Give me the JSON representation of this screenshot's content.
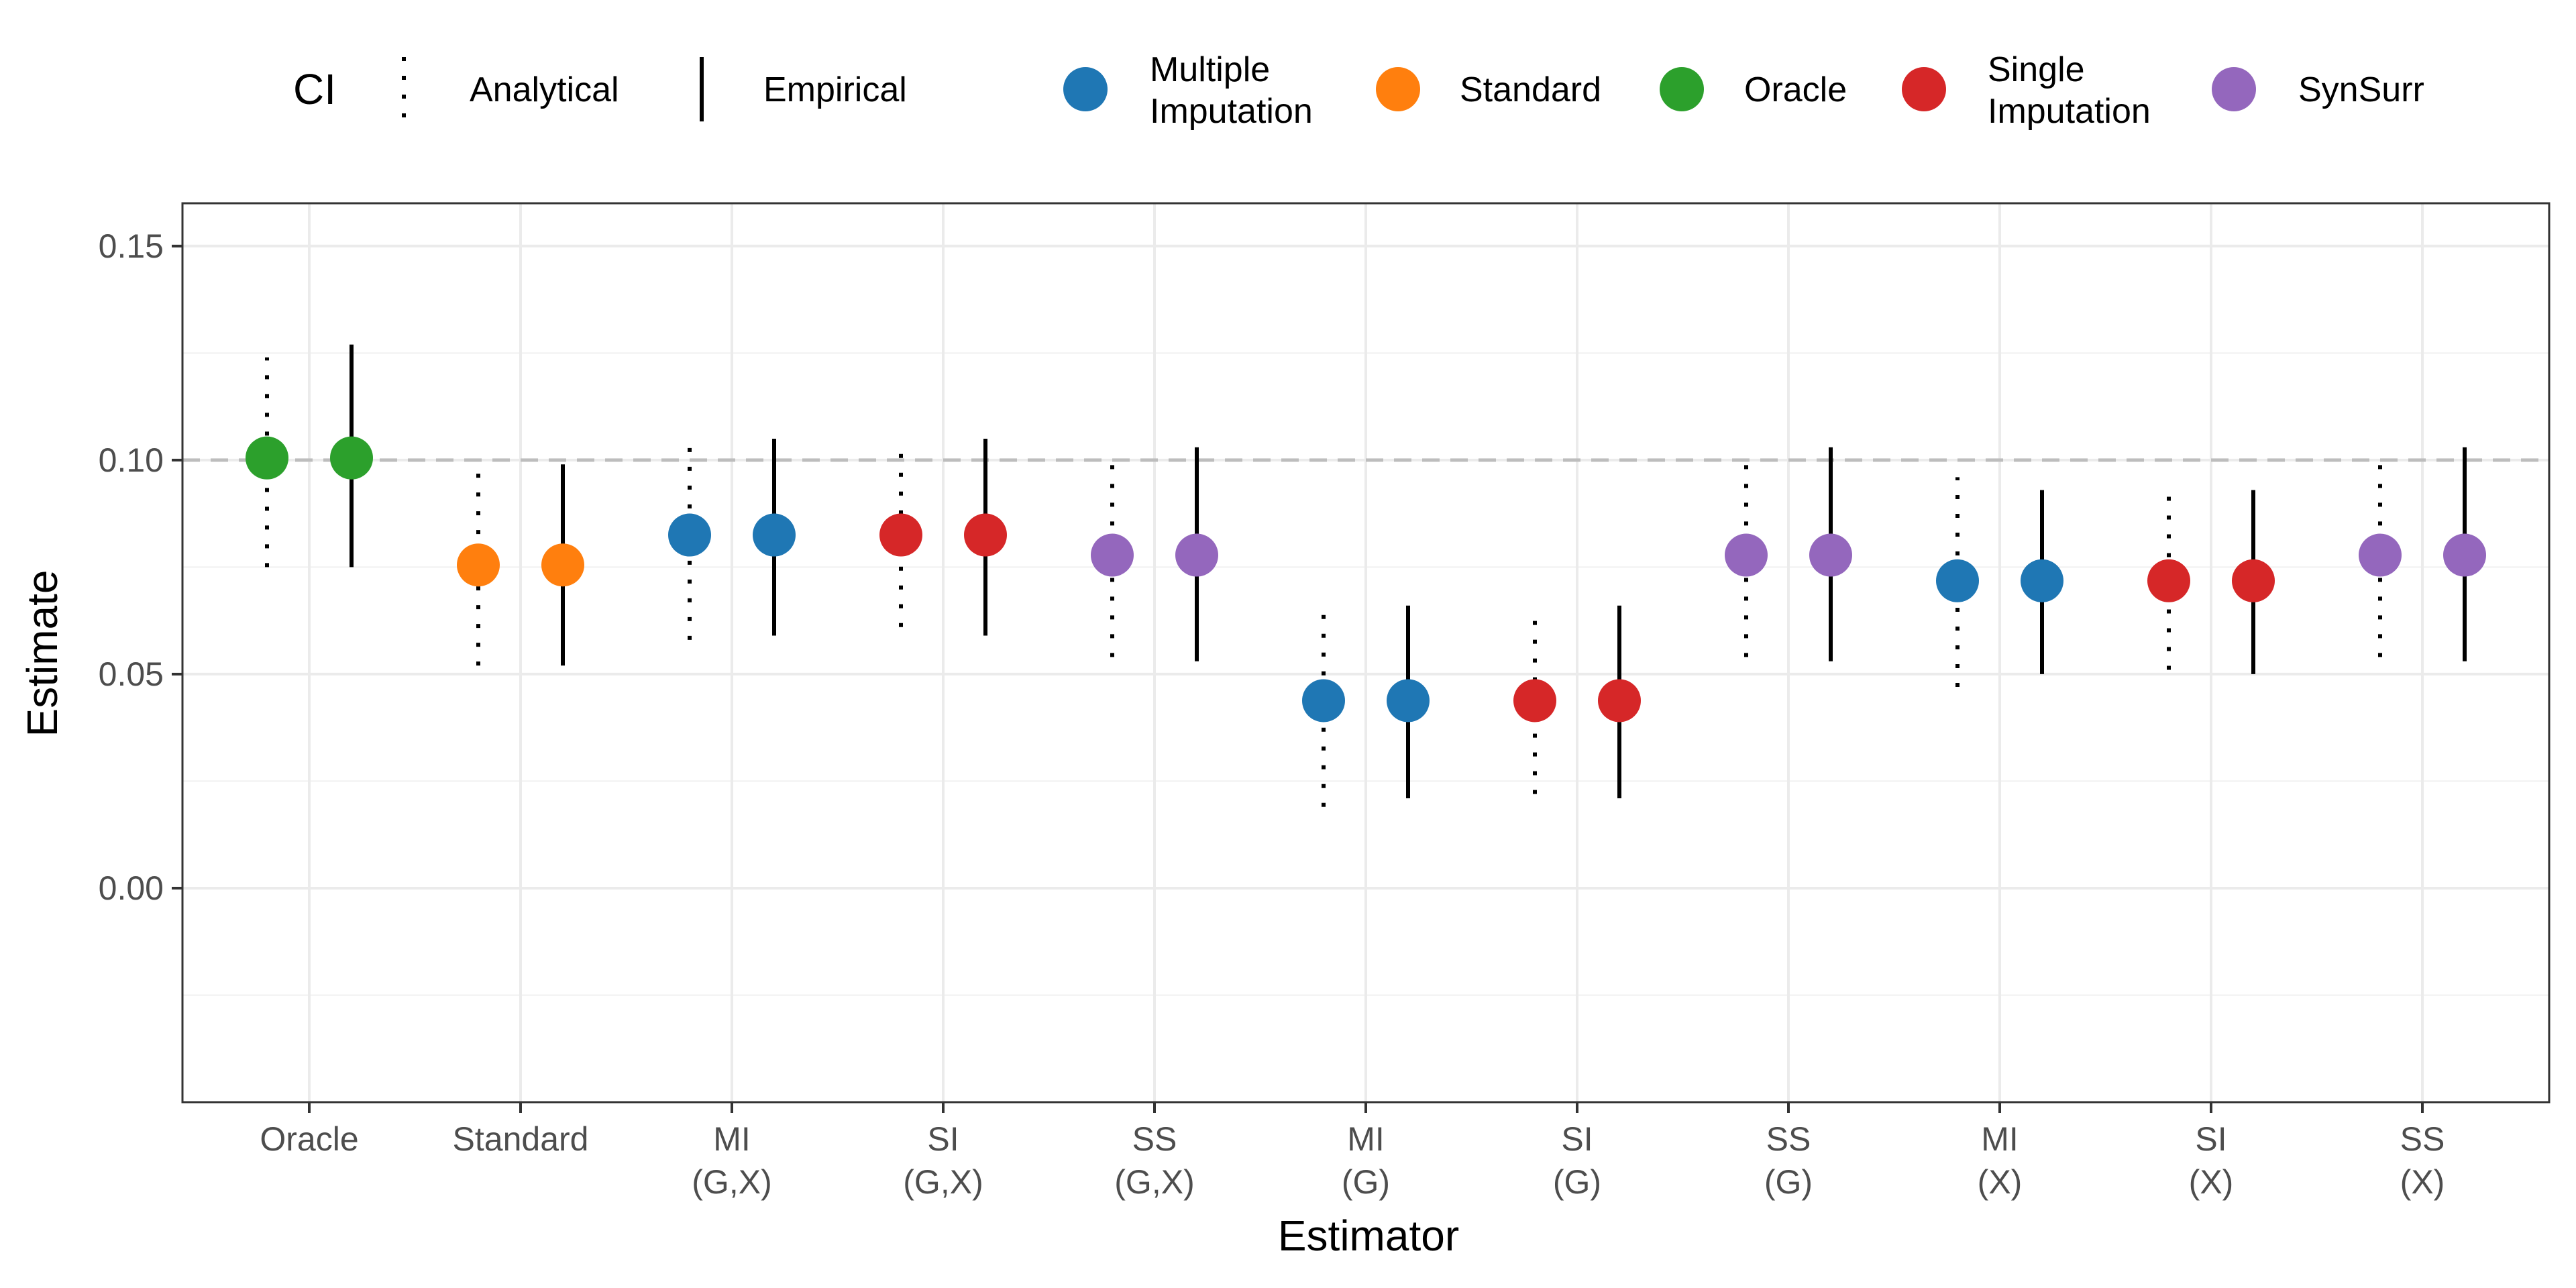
{
  "chart_data": {
    "type": "scatter",
    "xlabel": "Estimator",
    "ylabel": "Estimate",
    "ylim": [
      -0.05,
      0.16
    ],
    "yticks": [
      "0.00",
      "0.05",
      "0.10",
      "0.15"
    ],
    "ytick_values": [
      0.0,
      0.05,
      0.1,
      0.15
    ],
    "reference_line": 0.1,
    "grid": true,
    "legend_position": "top",
    "legend": {
      "ci_title": "CI",
      "ci_items": [
        {
          "label": "Analytical",
          "style": "dotted"
        },
        {
          "label": "Empirical",
          "style": "solid"
        }
      ],
      "method_items": [
        {
          "label": [
            "Multiple",
            "Imputation"
          ],
          "color": "#1f77b4"
        },
        {
          "label": [
            "Standard"
          ],
          "color": "#ff7f0e"
        },
        {
          "label": [
            "Oracle"
          ],
          "color": "#2ca02c"
        },
        {
          "label": [
            "Single",
            "Imputation"
          ],
          "color": "#d62728"
        },
        {
          "label": [
            "SynSurr"
          ],
          "color": "#9467bd"
        }
      ]
    },
    "categories": [
      {
        "label": [
          "Oracle"
        ],
        "method": "Oracle",
        "estimate": 0.1005,
        "analytical": [
          0.075,
          0.124
        ],
        "empirical": [
          0.075,
          0.127
        ]
      },
      {
        "label": [
          "Standard"
        ],
        "method": "Standard",
        "estimate": 0.0755,
        "analytical": [
          0.052,
          0.098
        ],
        "empirical": [
          0.052,
          0.099
        ]
      },
      {
        "label": [
          "MI",
          "(G,X)"
        ],
        "method": "Multiple Imputation",
        "estimate": 0.0825,
        "analytical": [
          0.058,
          0.106
        ],
        "empirical": [
          0.059,
          0.105
        ]
      },
      {
        "label": [
          "SI",
          "(G,X)"
        ],
        "method": "Single Imputation",
        "estimate": 0.0825,
        "analytical": [
          0.061,
          0.103
        ],
        "empirical": [
          0.059,
          0.105
        ]
      },
      {
        "label": [
          "SS",
          "(G,X)"
        ],
        "method": "SynSurr",
        "estimate": 0.0778,
        "analytical": [
          0.054,
          0.102
        ],
        "empirical": [
          0.053,
          0.103
        ]
      },
      {
        "label": [
          "MI",
          "(G)"
        ],
        "method": "Multiple Imputation",
        "estimate": 0.0438,
        "analytical": [
          0.019,
          0.067
        ],
        "empirical": [
          0.021,
          0.066
        ]
      },
      {
        "label": [
          "SI",
          "(G)"
        ],
        "method": "Single Imputation",
        "estimate": 0.0438,
        "analytical": [
          0.022,
          0.065
        ],
        "empirical": [
          0.021,
          0.066
        ]
      },
      {
        "label": [
          "SS",
          "(G)"
        ],
        "method": "SynSurr",
        "estimate": 0.0778,
        "analytical": [
          0.054,
          0.102
        ],
        "empirical": [
          0.053,
          0.103
        ]
      },
      {
        "label": [
          "MI",
          "(X)"
        ],
        "method": "Multiple Imputation",
        "estimate": 0.0718,
        "analytical": [
          0.047,
          0.096
        ],
        "empirical": [
          0.05,
          0.093
        ]
      },
      {
        "label": [
          "SI",
          "(X)"
        ],
        "method": "Single Imputation",
        "estimate": 0.0718,
        "analytical": [
          0.051,
          0.093
        ],
        "empirical": [
          0.05,
          0.093
        ]
      },
      {
        "label": [
          "SS",
          "(X)"
        ],
        "method": "SynSurr",
        "estimate": 0.0778,
        "analytical": [
          0.054,
          0.102
        ],
        "empirical": [
          0.053,
          0.103
        ]
      }
    ]
  }
}
